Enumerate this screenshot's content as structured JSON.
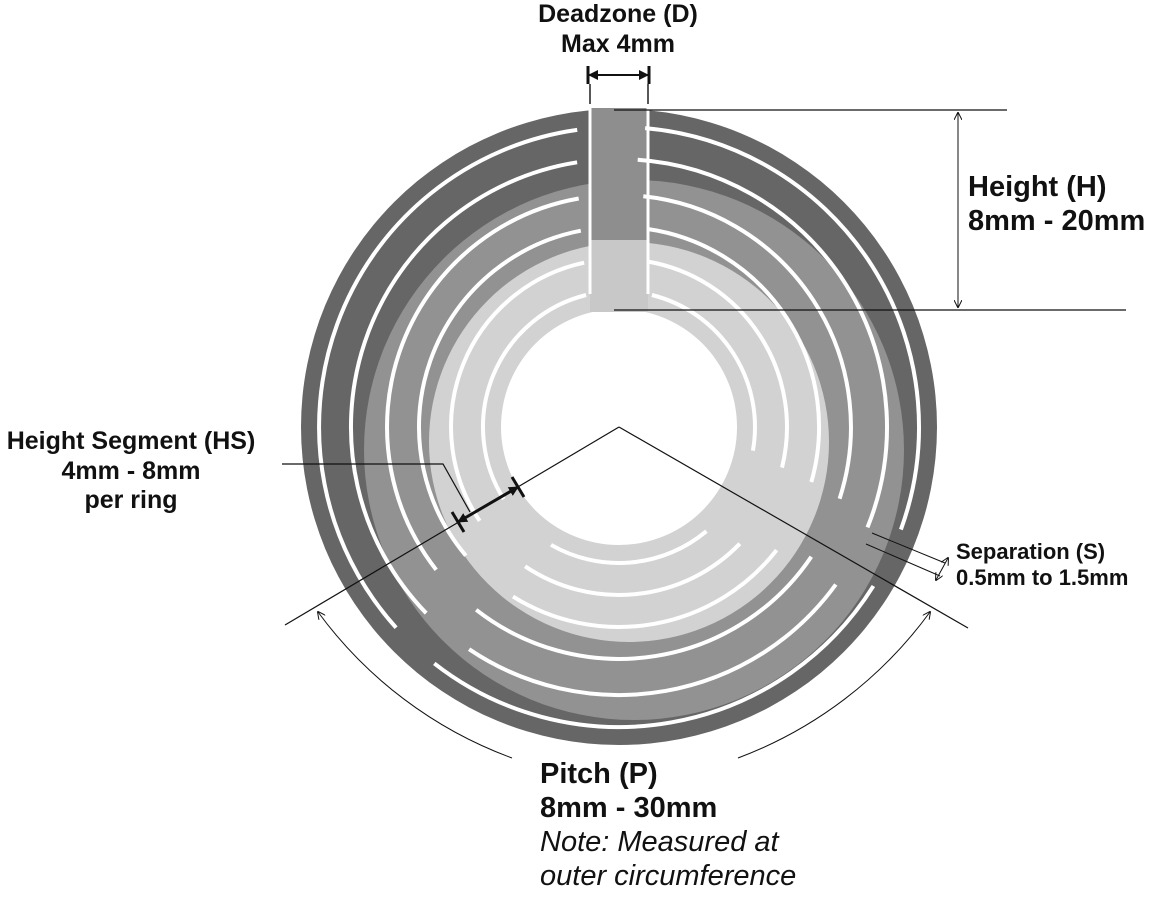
{
  "colors": {
    "outer_ring": "#666666",
    "middle_ring": "#929292",
    "inner_ring": "#d2d2d2",
    "slot": "#ffffff",
    "line": "#111111"
  },
  "deadzone": {
    "title": "Deadzone (D)",
    "value": "Max 4mm"
  },
  "height": {
    "title": "Height (H)",
    "value": "8mm - 20mm"
  },
  "height_segment": {
    "title": "Height Segment (HS)",
    "value": "4mm - 8mm",
    "unit_note": "per ring"
  },
  "separation": {
    "title": "Separation (S)",
    "value": "0.5mm to 1.5mm"
  },
  "pitch": {
    "title": "Pitch (P)",
    "value": "8mm - 30mm",
    "note_line1": "Note: Measured at",
    "note_line2": "outer circumference"
  }
}
